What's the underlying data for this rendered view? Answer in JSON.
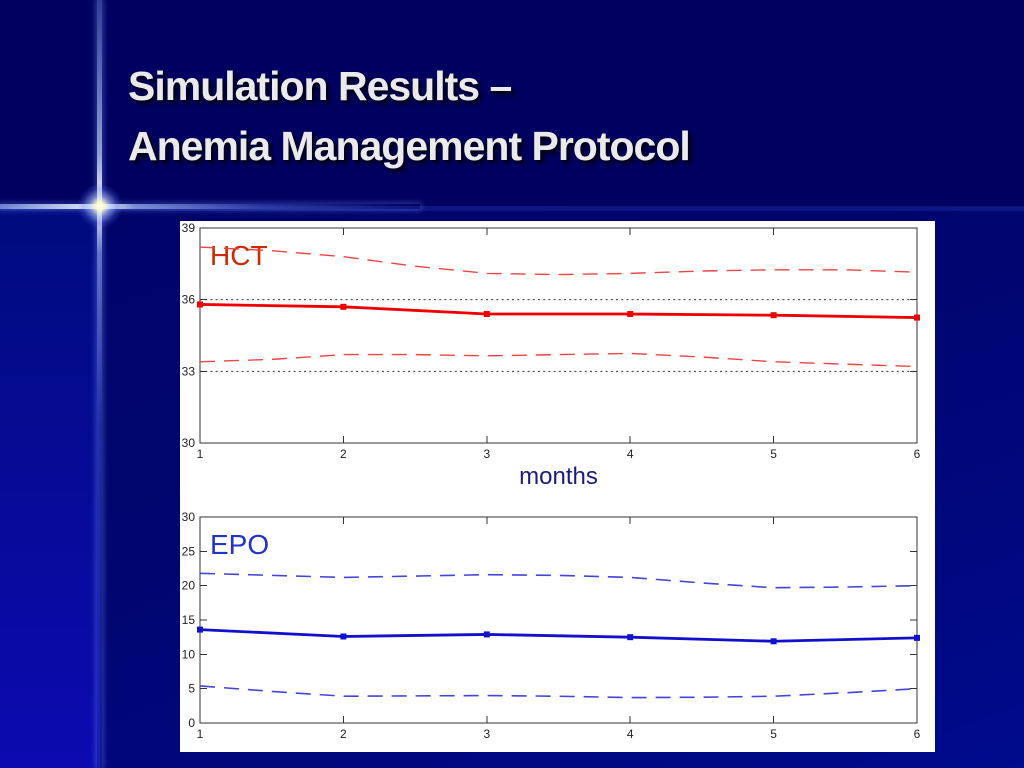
{
  "slide": {
    "title_line1": "Simulation Results –",
    "title_line2": "Anemia Management Protocol"
  },
  "colors": {
    "background_top": "#000060",
    "background_bottom": "#000468",
    "background_bottom_deep": "#000b8d",
    "left_column_bottom": "#0b0bb0",
    "panel_bg": "#ffffff",
    "title_text": "#eaeaea",
    "axis": "#333333",
    "tick_text": "#222222",
    "hct_label": "#cc2a00",
    "epo_label": "#2233cc",
    "months_label": "#1b1b7e",
    "hct_line": "#ee0000",
    "hct_bound": "#ee4444",
    "epo_line": "#1111cc",
    "epo_bound": "#4444d8",
    "target_line": "#333333"
  },
  "chart_data": [
    {
      "type": "line",
      "label": "HCT",
      "label_color": "#cc2a00",
      "xlabel": "months",
      "xlabel_color": "#1b1b7e",
      "xlim": [
        1,
        6
      ],
      "ylim": [
        30,
        39
      ],
      "x_ticks": [
        1,
        2,
        3,
        4,
        5,
        6
      ],
      "y_ticks": [
        30,
        33,
        36,
        39
      ],
      "grid": false,
      "legend": "none",
      "series": [
        {
          "name": "hct-target-upper",
          "style": "dotted",
          "color": "#333333",
          "width": 1,
          "x": [
            1,
            6
          ],
          "values": [
            36,
            36
          ]
        },
        {
          "name": "hct-target-lower",
          "style": "dotted",
          "color": "#333333",
          "width": 1,
          "x": [
            1,
            6
          ],
          "values": [
            33,
            33
          ]
        },
        {
          "name": "hct-upper-bound",
          "style": "dashed",
          "color": "#ee4444",
          "width": 1.4,
          "x": [
            1,
            1.5,
            2,
            2.5,
            3,
            3.5,
            4,
            4.5,
            5,
            5.5,
            6
          ],
          "values": [
            38.2,
            38.05,
            37.8,
            37.4,
            37.1,
            37.05,
            37.1,
            37.2,
            37.25,
            37.25,
            37.15
          ]
        },
        {
          "name": "hct-lower-bound",
          "style": "dashed",
          "color": "#ee4444",
          "width": 1.4,
          "x": [
            1,
            1.5,
            2,
            2.5,
            3,
            3.5,
            4,
            4.5,
            5,
            5.5,
            6
          ],
          "values": [
            33.4,
            33.5,
            33.7,
            33.7,
            33.65,
            33.7,
            33.75,
            33.6,
            33.4,
            33.3,
            33.2
          ]
        },
        {
          "name": "hct-mean",
          "style": "solid",
          "marker": "square",
          "color": "#ee0000",
          "width": 2.8,
          "x": [
            1,
            2,
            3,
            4,
            5,
            6
          ],
          "values": [
            35.8,
            35.7,
            35.4,
            35.4,
            35.35,
            35.25
          ]
        }
      ]
    },
    {
      "type": "line",
      "label": "EPO",
      "label_color": "#2233cc",
      "xlabel": "",
      "xlabel_color": "#1b1b7e",
      "xlim": [
        1,
        6
      ],
      "ylim": [
        0,
        30
      ],
      "x_ticks": [
        1,
        2,
        3,
        4,
        5,
        6
      ],
      "y_ticks": [
        0,
        5,
        10,
        15,
        20,
        25,
        30
      ],
      "grid": false,
      "legend": "none",
      "series": [
        {
          "name": "epo-upper-bound",
          "style": "dashed",
          "color": "#4444d8",
          "width": 1.6,
          "x": [
            1,
            1.5,
            2,
            2.5,
            3,
            3.5,
            4,
            4.5,
            5,
            5.5,
            6
          ],
          "values": [
            21.8,
            21.5,
            21.2,
            21.4,
            21.6,
            21.5,
            21.2,
            20.4,
            19.7,
            19.8,
            20.0
          ]
        },
        {
          "name": "epo-lower-bound",
          "style": "dashed",
          "color": "#4444d8",
          "width": 1.6,
          "x": [
            1,
            1.5,
            2,
            2.5,
            3,
            3.5,
            4,
            4.5,
            5,
            5.5,
            6
          ],
          "values": [
            5.4,
            4.6,
            3.9,
            3.95,
            4.0,
            3.9,
            3.7,
            3.75,
            3.9,
            4.4,
            5.0
          ]
        },
        {
          "name": "epo-mean",
          "style": "solid",
          "marker": "square",
          "color": "#1111cc",
          "width": 2.8,
          "x": [
            1,
            2,
            3,
            4,
            5,
            6
          ],
          "values": [
            13.6,
            12.6,
            12.9,
            12.5,
            11.9,
            12.4
          ]
        }
      ]
    }
  ]
}
